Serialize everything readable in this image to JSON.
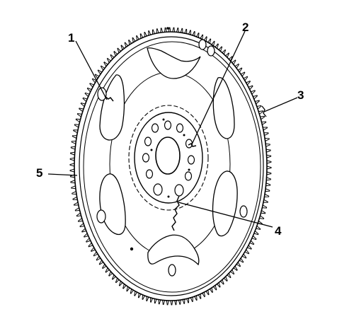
{
  "diagram": {
    "subject": "flexplate-with-ring-gear",
    "callouts": [
      {
        "id": "c1",
        "label": "1",
        "target": "lightening-hole-crack"
      },
      {
        "id": "c2",
        "label": "2",
        "target": "bolt-hole-crack"
      },
      {
        "id": "c3",
        "label": "3",
        "target": "ring-gear-weld"
      },
      {
        "id": "c4",
        "label": "4",
        "target": "hub-to-rim-crack"
      },
      {
        "id": "c5",
        "label": "5",
        "target": "ring-gear-teeth"
      }
    ],
    "colors": {
      "line": "#000000",
      "background": "#ffffff"
    }
  }
}
